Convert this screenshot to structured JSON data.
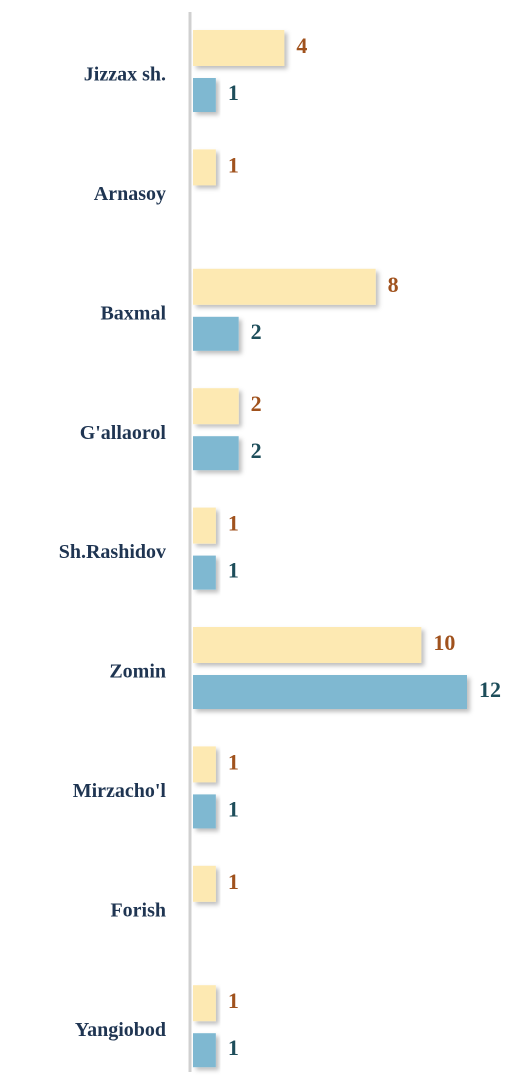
{
  "chart_data": {
    "type": "bar",
    "orientation": "horizontal",
    "categories": [
      "Jizzax sh.",
      "Arnasoy",
      "Baxmal",
      "G'allaorol",
      "Sh.Rashidov",
      "Zomin",
      "Mirzacho'l",
      "Forish",
      "Yangiobod"
    ],
    "series": [
      {
        "color": "#fde9b2",
        "label_color": "#a0521d",
        "values": [
          4,
          1,
          8,
          2,
          1,
          10,
          1,
          1,
          1
        ]
      },
      {
        "color": "#7fb8d1",
        "label_color": "#1d4d5a",
        "values": [
          1,
          null,
          2,
          2,
          1,
          12,
          1,
          null,
          1
        ]
      }
    ],
    "data_labels": true
  }
}
